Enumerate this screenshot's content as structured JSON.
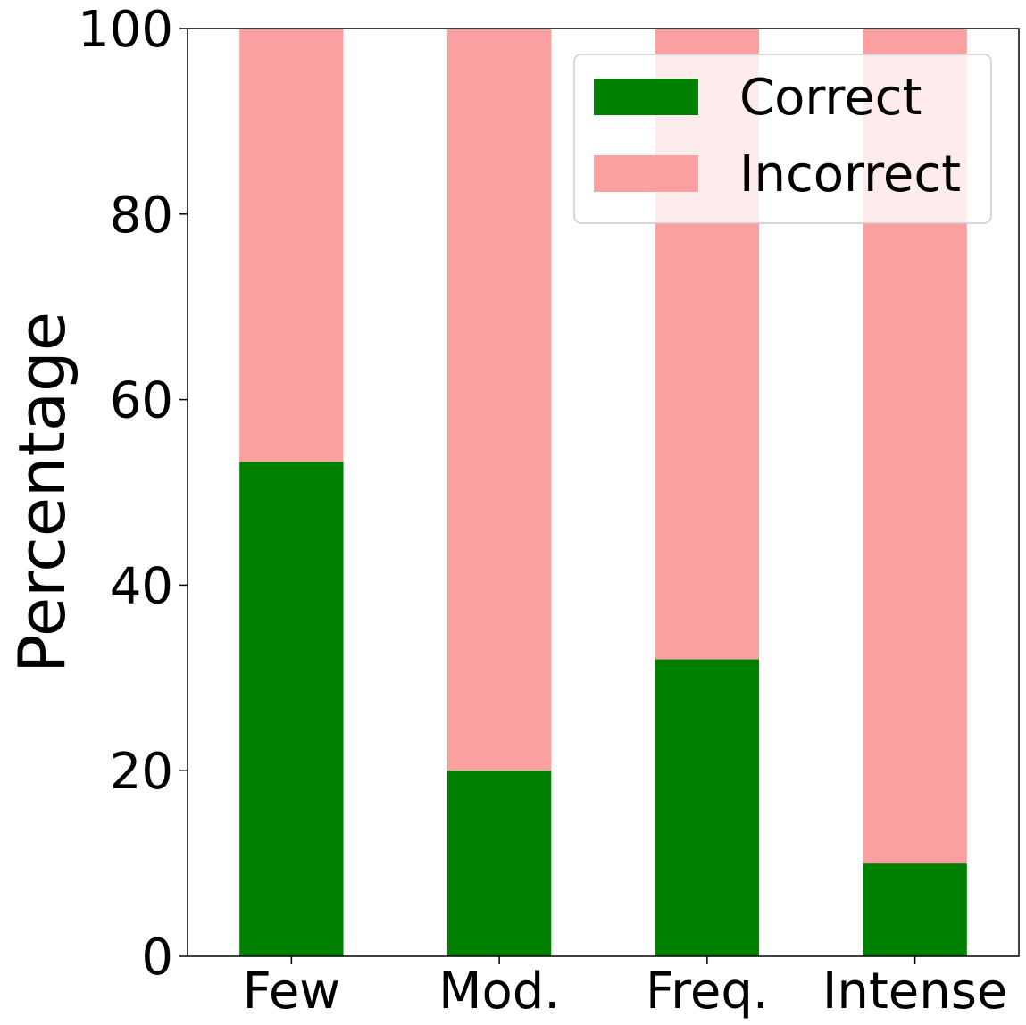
{
  "chart_data": {
    "type": "bar",
    "stacked": true,
    "categories": [
      "Few",
      "Mod.",
      "Freq.",
      "Intense"
    ],
    "series": [
      {
        "name": "Correct",
        "values": [
          53.3,
          20.0,
          32.0,
          10.0
        ],
        "color": "#008000"
      },
      {
        "name": "Incorrect",
        "values": [
          46.7,
          80.0,
          68.0,
          90.0
        ],
        "color": "#fba0a0"
      }
    ],
    "ylabel": "Percentage",
    "xlabel": "",
    "ylim": [
      0,
      100
    ],
    "yticks": [
      "0",
      "20",
      "40",
      "60",
      "80",
      "100"
    ],
    "grid": false,
    "legend_position": "top-right"
  }
}
